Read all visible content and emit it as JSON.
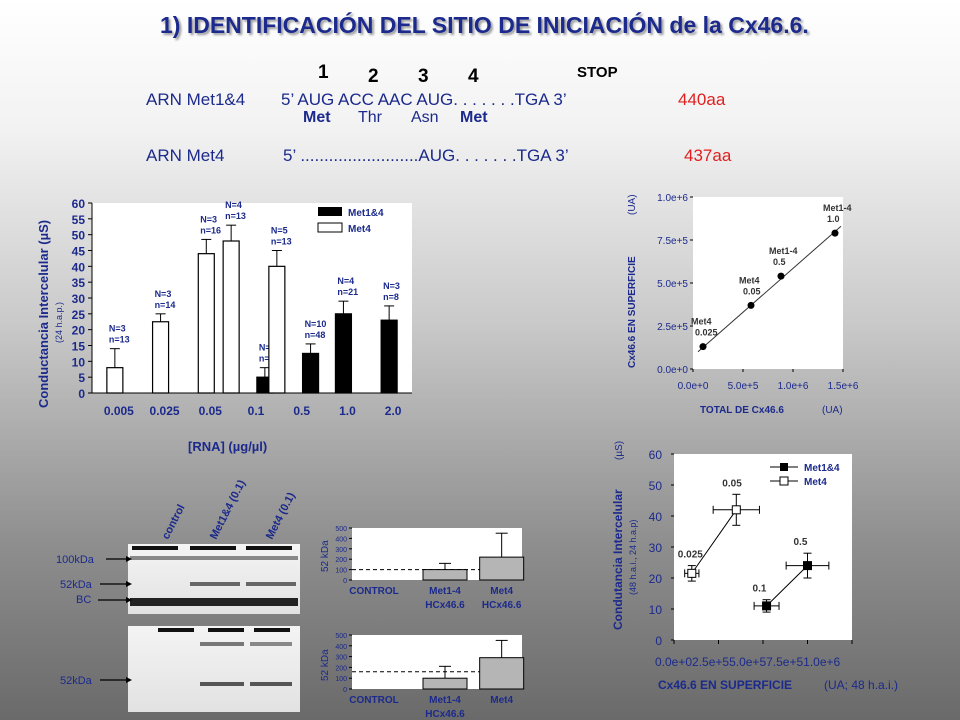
{
  "title": "1) IDENTIFICACIÓN DEL SITIO DE INICIACIÓN de la Cx46.6.",
  "codon_numbers": [
    "1",
    "2",
    "3",
    "4"
  ],
  "stop_label": "STOP",
  "rna1": {
    "name": "ARN Met1&4",
    "seq": "5’ AUG ACC AAC AUG. . . . . . .TGA 3’",
    "length": "440aa",
    "aa": [
      "Met",
      "Thr",
      "Asn",
      "Met"
    ]
  },
  "rna2": {
    "name": "ARN Met4",
    "seq": "5’ .........................AUG. . . . . . .TGA 3’",
    "length": "437aa"
  },
  "chart_data": [
    {
      "type": "bar",
      "ylabel": "Conductancia Intercelular (µS)",
      "ylabel_sub": "(24 h.a.p.)",
      "xlabel": "[RNA] (µg/µl)",
      "ylim": [
        0,
        60
      ],
      "yticks": [
        "0",
        "5",
        "10",
        "15",
        "20",
        "25",
        "30",
        "35",
        "40",
        "45",
        "50",
        "55",
        "60"
      ],
      "categories": [
        "0.005",
        "0.025",
        "0.05",
        "0.1",
        "0.5",
        "1.0",
        "2.0"
      ],
      "legend": [
        "Met1&4",
        "Met4"
      ],
      "bars": [
        {
          "cat": "0.005",
          "series": "Met4",
          "value": 8,
          "err": 6,
          "n1": "N=3",
          "n2": "n=13"
        },
        {
          "cat": "0.025",
          "series": "Met4",
          "value": 22.5,
          "err": 2.5,
          "n1": "N=3",
          "n2": "n=14"
        },
        {
          "cat": "0.05",
          "series": "Met4",
          "value": 44,
          "err": 4.5,
          "n1": "N=3",
          "n2": "n=16"
        },
        {
          "cat": "0.1",
          "series": "Met4",
          "value": 48,
          "err": 5,
          "n1": "N=4",
          "n2": "n=13"
        },
        {
          "cat": "0.1",
          "series": "Met1&4",
          "value": 5,
          "err": 3,
          "n1": "N=4",
          "n2": "n=13"
        },
        {
          "cat": "0.5",
          "series": "Met4",
          "value": 40,
          "err": 5,
          "n1": "N=5",
          "n2": "n=13"
        },
        {
          "cat": "0.5",
          "series": "Met1&4",
          "value": 12.5,
          "err": 3,
          "n1": "N=10",
          "n2": "n=48"
        },
        {
          "cat": "1.0",
          "series": "Met1&4",
          "value": 25,
          "err": 4,
          "n1": "N=4",
          "n2": "n=21"
        },
        {
          "cat": "2.0",
          "series": "Met1&4",
          "value": 23,
          "err": 4.5,
          "n1": "N=3",
          "n2": "n=8"
        }
      ]
    },
    {
      "type": "scatter",
      "ylabel": "Cx46.6 EN SUPERFICIE",
      "ylabel_unit": "(UA)",
      "xlabel": "TOTAL DE Cx46.6",
      "xlabel_unit": "(UA)",
      "xlim": [
        0,
        1500000
      ],
      "ylim": [
        0,
        1000000
      ],
      "xticks": [
        "0.0e+0",
        "5.0e+5",
        "1.0e+6",
        "1.5e+6"
      ],
      "yticks": [
        "0.0e+0",
        "2.5e+5",
        "5.0e+5",
        "7.5e+5",
        "1.0e+6"
      ],
      "points": [
        {
          "x": 100000,
          "y": 130000,
          "label1": "Met4",
          "label2": "0.025"
        },
        {
          "x": 580000,
          "y": 370000,
          "label1": "Met4",
          "label2": "0.05"
        },
        {
          "x": 880000,
          "y": 540000,
          "label1": "Met1-4",
          "label2": "0.5"
        },
        {
          "x": 1420000,
          "y": 790000,
          "label1": "Met1-4",
          "label2": "1.0"
        }
      ]
    },
    {
      "type": "scatter",
      "ylabel": "Condutancia Intercelular",
      "ylabel_unit": "(µS)",
      "ylabel_sub": "(48 h.a.i., 24 h.a.p)",
      "xlabel": "Cx46.6 EN SUPERFICIE",
      "xlabel_unit": "(UA; 48 h.a.i.)",
      "xlim": [
        0,
        1000000
      ],
      "ylim": [
        0,
        60
      ],
      "xticks": [
        "0.0e+0",
        "2.5e+5",
        "5.0e+5",
        "7.5e+5",
        "1.0e+6"
      ],
      "yticks": [
        "0",
        "10",
        "20",
        "30",
        "40",
        "50",
        "60"
      ],
      "legend": [
        "Met1&4",
        "Met4"
      ],
      "series": [
        {
          "name": "Met4",
          "points": [
            {
              "x": 100000,
              "y": 21.5,
              "xerr": 40000,
              "yerr": 2.5,
              "label": "0.025"
            },
            {
              "x": 350000,
              "y": 42,
              "xerr": 130000,
              "yerr": 5,
              "label": "0.05"
            }
          ]
        },
        {
          "name": "Met1&4",
          "points": [
            {
              "x": 520000,
              "y": 11,
              "xerr": 70000,
              "yerr": 2,
              "label": "0.1"
            },
            {
              "x": 750000,
              "y": 24,
              "xerr": 120000,
              "yerr": 4,
              "label": "0.5"
            }
          ]
        }
      ]
    },
    {
      "type": "bar",
      "ylabel": "52 kDa",
      "ylim": [
        0,
        500
      ],
      "yticks": [
        "0",
        "100",
        "200",
        "300",
        "400",
        "500"
      ],
      "categories": [
        "CONTROL",
        "Met1-4 HCx46.6",
        "Met4 HCx46.6"
      ],
      "cat_lines": [
        [
          "CONTROL"
        ],
        [
          "Met1-4",
          "HCx46.6"
        ],
        [
          "Met4",
          "HCx46.6"
        ]
      ],
      "values": [
        0,
        100,
        220
      ],
      "errors": [
        0,
        60,
        230
      ],
      "reference": 100
    },
    {
      "type": "bar",
      "ylabel": "52 kDa",
      "ylim": [
        0,
        500
      ],
      "yticks": [
        "0",
        "100",
        "200",
        "300",
        "400",
        "500"
      ],
      "categories": [
        "CONTROL",
        "Met1-4 HCx46.6",
        "Met4"
      ],
      "cat_lines": [
        [
          "CONTROL"
        ],
        [
          "Met1-4",
          "HCx46.6"
        ],
        [
          "Met4"
        ]
      ],
      "values": [
        0,
        100,
        290
      ],
      "errors": [
        0,
        110,
        160
      ],
      "reference": 160
    }
  ],
  "western": {
    "lanes": [
      "control",
      "Met1&4 (0.1)",
      "Met4 (0.1)"
    ],
    "markers_top": [
      "100kDa",
      "52kDa",
      "BC"
    ],
    "markers_bottom": [
      "52kDa"
    ]
  }
}
